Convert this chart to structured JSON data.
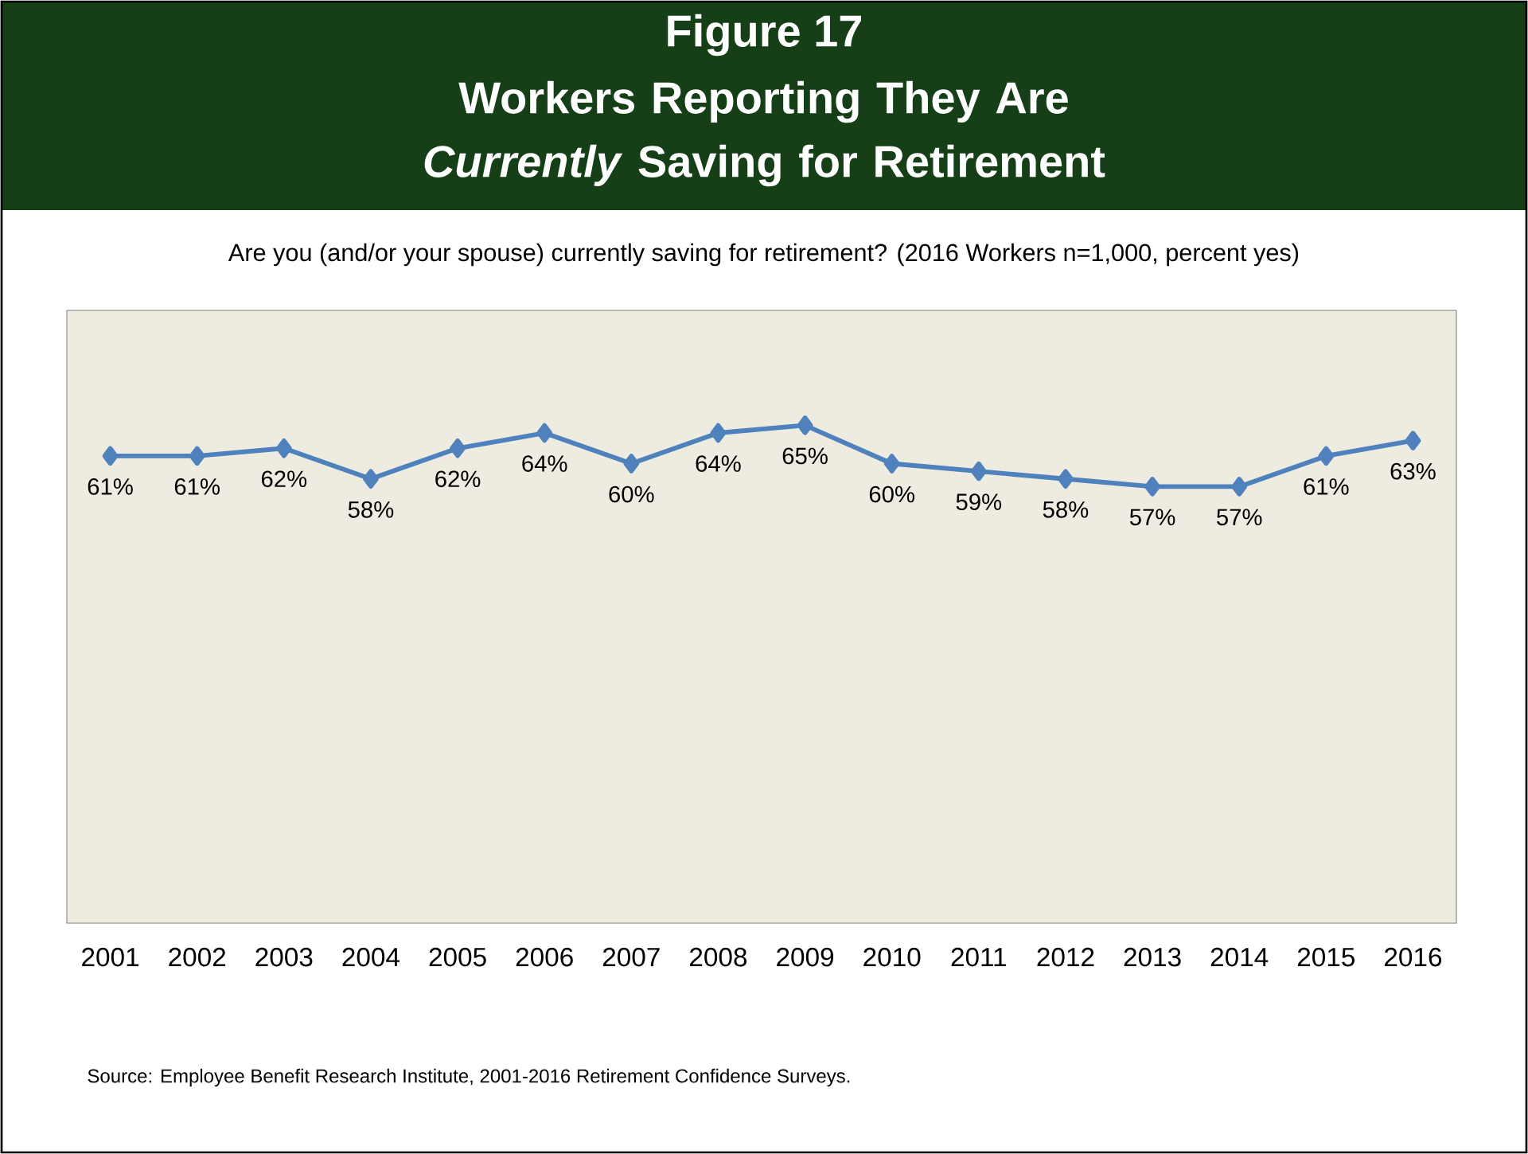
{
  "chart_data": {
    "type": "line",
    "title": "Figure 17",
    "subtitle": "Workers Reporting They Are *Currently* Saving for Retirement",
    "annotations": [
      "Are you (and/or your spouse) currently saving for retirement?  (2016 Workers n=1,000, percent yes)",
      "Source:  Employee Benefit Research Institute, 2001-2016 Retirement Confidence Surveys."
    ],
    "categories": [
      "2001",
      "2002",
      "2003",
      "2004",
      "2005",
      "2006",
      "2007",
      "2008",
      "2009",
      "2010",
      "2011",
      "2012",
      "2013",
      "2014",
      "2015",
      "2016"
    ],
    "series": [
      {
        "color": "#4f81bd",
        "values": [
          61,
          61,
          62,
          58,
          62,
          64,
          60,
          64,
          65,
          60,
          59,
          58,
          57,
          57,
          61,
          63
        ],
        "value_labels": [
          "61%",
          "61%",
          "62%",
          "58%",
          "62%",
          "64%",
          "60%",
          "64%",
          "65%",
          "60%",
          "59%",
          "58%",
          "57%",
          "57%",
          "61%",
          "63%"
        ]
      }
    ],
    "ylim": [
      0,
      80
    ],
    "tick_labels": "x",
    "marker": "diamond",
    "line_style": "solid"
  }
}
